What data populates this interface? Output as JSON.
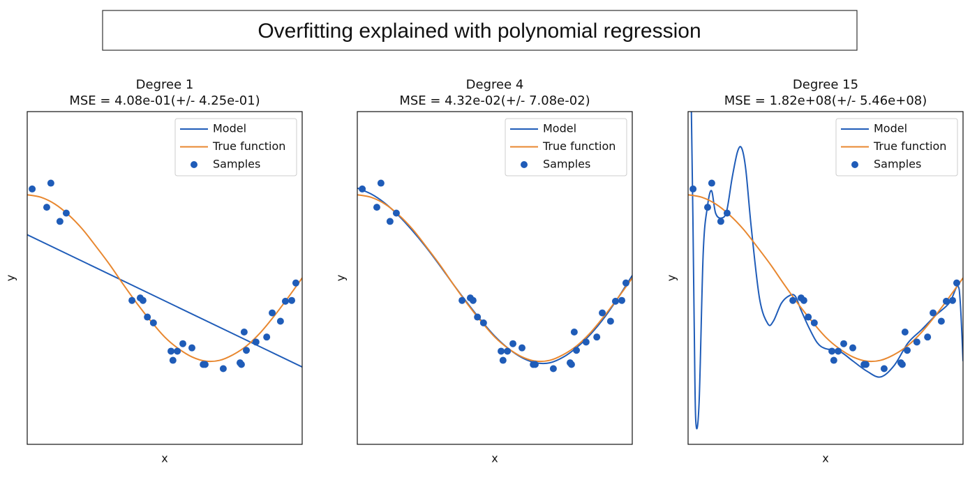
{
  "title": "Overfitting explained with polynomial regression",
  "chart_data": [
    {
      "type": "line",
      "title": "Degree 1",
      "subtitle": "MSE = 4.08e-01(+/- 4.25e-01)",
      "xlabel": "x",
      "ylabel": "y",
      "xlim": [
        0,
        1
      ],
      "ylim": [
        -2,
        2
      ],
      "legend": "upper right",
      "series": [
        {
          "name": "Model",
          "type": "line",
          "color": "#1f5cb8",
          "x": [
            0,
            1
          ],
          "values": [
            0.52,
            -1.07
          ]
        },
        {
          "name": "True function",
          "type": "line",
          "color": "#e8872f",
          "x": [
            0,
            0.05,
            0.1,
            0.15,
            0.2,
            0.25,
            0.3,
            0.35,
            0.4,
            0.45,
            0.5,
            0.55,
            0.6,
            0.65,
            0.7,
            0.75,
            0.8,
            0.85,
            0.9,
            0.95,
            1
          ],
          "values": [
            1,
            0.97,
            0.89,
            0.76,
            0.59,
            0.38,
            0.16,
            -0.08,
            -0.31,
            -0.52,
            -0.71,
            -0.85,
            -0.95,
            -1,
            -0.99,
            -0.92,
            -0.81,
            -0.65,
            -0.45,
            -0.23,
            0
          ]
        },
        {
          "name": "Samples",
          "type": "scatter",
          "color": "#1f5cb8",
          "x": [
            0.018,
            0.086,
            0.071,
            0.119,
            0.142,
            0.381,
            0.411,
            0.421,
            0.437,
            0.459,
            0.523,
            0.53,
            0.546,
            0.566,
            0.599,
            0.64,
            0.647,
            0.713,
            0.774,
            0.779,
            0.789,
            0.797,
            0.832,
            0.871,
            0.891,
            0.921,
            0.939,
            0.962,
            0.977
          ],
          "values": [
            1.07,
            1.14,
            0.85,
            0.68,
            0.78,
            -0.27,
            -0.24,
            -0.27,
            -0.47,
            -0.54,
            -0.88,
            -0.99,
            -0.88,
            -0.79,
            -0.84,
            -1.04,
            -1.04,
            -1.09,
            -1.02,
            -1.04,
            -0.65,
            -0.87,
            -0.77,
            -0.71,
            -0.42,
            -0.52,
            -0.28,
            -0.27,
            -0.06
          ]
        }
      ]
    },
    {
      "type": "line",
      "title": "Degree 4",
      "subtitle": "MSE = 4.32e-02(+/- 7.08e-02)",
      "xlabel": "x",
      "ylabel": "y",
      "xlim": [
        0,
        1
      ],
      "ylim": [
        -2,
        2
      ],
      "legend": "upper right",
      "series": [
        {
          "name": "Model",
          "type": "line",
          "color": "#1f5cb8",
          "x": [
            0,
            0.05,
            0.1,
            0.15,
            0.2,
            0.25,
            0.3,
            0.35,
            0.4,
            0.45,
            0.5,
            0.55,
            0.6,
            0.65,
            0.7,
            0.75,
            0.8,
            0.85,
            0.9,
            0.95,
            1
          ],
          "values": [
            1.08,
            1.01,
            0.9,
            0.75,
            0.57,
            0.37,
            0.15,
            -0.08,
            -0.3,
            -0.51,
            -0.7,
            -0.85,
            -0.96,
            -1.02,
            -1.02,
            -0.95,
            -0.83,
            -0.67,
            -0.47,
            -0.23,
            0.03
          ]
        },
        {
          "name": "True function",
          "type": "line",
          "color": "#e8872f",
          "x": [
            0,
            0.05,
            0.1,
            0.15,
            0.2,
            0.25,
            0.3,
            0.35,
            0.4,
            0.45,
            0.5,
            0.55,
            0.6,
            0.65,
            0.7,
            0.75,
            0.8,
            0.85,
            0.9,
            0.95,
            1
          ],
          "values": [
            1,
            0.97,
            0.89,
            0.76,
            0.59,
            0.38,
            0.16,
            -0.08,
            -0.31,
            -0.52,
            -0.71,
            -0.85,
            -0.95,
            -1,
            -0.99,
            -0.92,
            -0.81,
            -0.65,
            -0.45,
            -0.23,
            0
          ]
        },
        {
          "name": "Samples",
          "type": "scatter",
          "color": "#1f5cb8",
          "x": [
            0.018,
            0.086,
            0.071,
            0.119,
            0.142,
            0.381,
            0.411,
            0.421,
            0.437,
            0.459,
            0.523,
            0.53,
            0.546,
            0.566,
            0.599,
            0.64,
            0.647,
            0.713,
            0.774,
            0.779,
            0.789,
            0.797,
            0.832,
            0.871,
            0.891,
            0.921,
            0.939,
            0.962,
            0.977
          ],
          "values": [
            1.07,
            1.14,
            0.85,
            0.68,
            0.78,
            -0.27,
            -0.24,
            -0.27,
            -0.47,
            -0.54,
            -0.88,
            -0.99,
            -0.88,
            -0.79,
            -0.84,
            -1.04,
            -1.04,
            -1.09,
            -1.02,
            -1.04,
            -0.65,
            -0.87,
            -0.77,
            -0.71,
            -0.42,
            -0.52,
            -0.28,
            -0.27,
            -0.06
          ]
        }
      ]
    },
    {
      "type": "line",
      "title": "Degree 15",
      "subtitle": "MSE = 1.82e+08(+/- 5.46e+08)",
      "xlabel": "x",
      "ylabel": "y",
      "xlim": [
        0,
        1
      ],
      "ylim": [
        -2,
        2
      ],
      "legend": "upper right",
      "series": [
        {
          "name": "Model",
          "type": "line",
          "color": "#1f5cb8",
          "x": [
            0,
            0.012,
            0.022,
            0.028,
            0.04,
            0.055,
            0.07,
            0.085,
            0.1,
            0.12,
            0.14,
            0.16,
            0.18,
            0.195,
            0.21,
            0.23,
            0.26,
            0.29,
            0.31,
            0.34,
            0.37,
            0.39,
            0.41,
            0.44,
            0.47,
            0.5,
            0.55,
            0.6,
            0.65,
            0.7,
            0.75,
            0.8,
            0.85,
            0.9,
            0.95,
            0.98,
            0.99,
            1
          ],
          "values": [
            3,
            2,
            -0.5,
            -1.72,
            -1.5,
            0.3,
            0.85,
            1.05,
            0.78,
            0.72,
            0.8,
            1.2,
            1.52,
            1.56,
            1.3,
            0.6,
            -0.25,
            -0.55,
            -0.52,
            -0.3,
            -0.21,
            -0.22,
            -0.38,
            -0.6,
            -0.78,
            -0.85,
            -0.88,
            -1,
            -1.12,
            -1.19,
            -1.05,
            -0.78,
            -0.62,
            -0.45,
            -0.3,
            -0.1,
            -0.3,
            -1
          ]
        },
        {
          "name": "True function",
          "type": "line",
          "color": "#e8872f",
          "x": [
            0,
            0.05,
            0.1,
            0.15,
            0.2,
            0.25,
            0.3,
            0.35,
            0.4,
            0.45,
            0.5,
            0.55,
            0.6,
            0.65,
            0.7,
            0.75,
            0.8,
            0.85,
            0.9,
            0.95,
            1
          ],
          "values": [
            1,
            0.97,
            0.89,
            0.76,
            0.59,
            0.38,
            0.16,
            -0.08,
            -0.31,
            -0.52,
            -0.71,
            -0.85,
            -0.95,
            -1,
            -0.99,
            -0.92,
            -0.81,
            -0.65,
            -0.45,
            -0.23,
            0
          ]
        },
        {
          "name": "Samples",
          "type": "scatter",
          "color": "#1f5cb8",
          "x": [
            0.018,
            0.086,
            0.071,
            0.119,
            0.142,
            0.381,
            0.411,
            0.421,
            0.437,
            0.459,
            0.523,
            0.53,
            0.546,
            0.566,
            0.599,
            0.64,
            0.647,
            0.713,
            0.774,
            0.779,
            0.789,
            0.797,
            0.832,
            0.871,
            0.891,
            0.921,
            0.939,
            0.962,
            0.977
          ],
          "values": [
            1.07,
            1.14,
            0.85,
            0.68,
            0.78,
            -0.27,
            -0.24,
            -0.27,
            -0.47,
            -0.54,
            -0.88,
            -0.99,
            -0.88,
            -0.79,
            -0.84,
            -1.04,
            -1.04,
            -1.09,
            -1.02,
            -1.04,
            -0.65,
            -0.87,
            -0.77,
            -0.71,
            -0.42,
            -0.52,
            -0.28,
            -0.27,
            -0.06
          ]
        }
      ]
    }
  ]
}
